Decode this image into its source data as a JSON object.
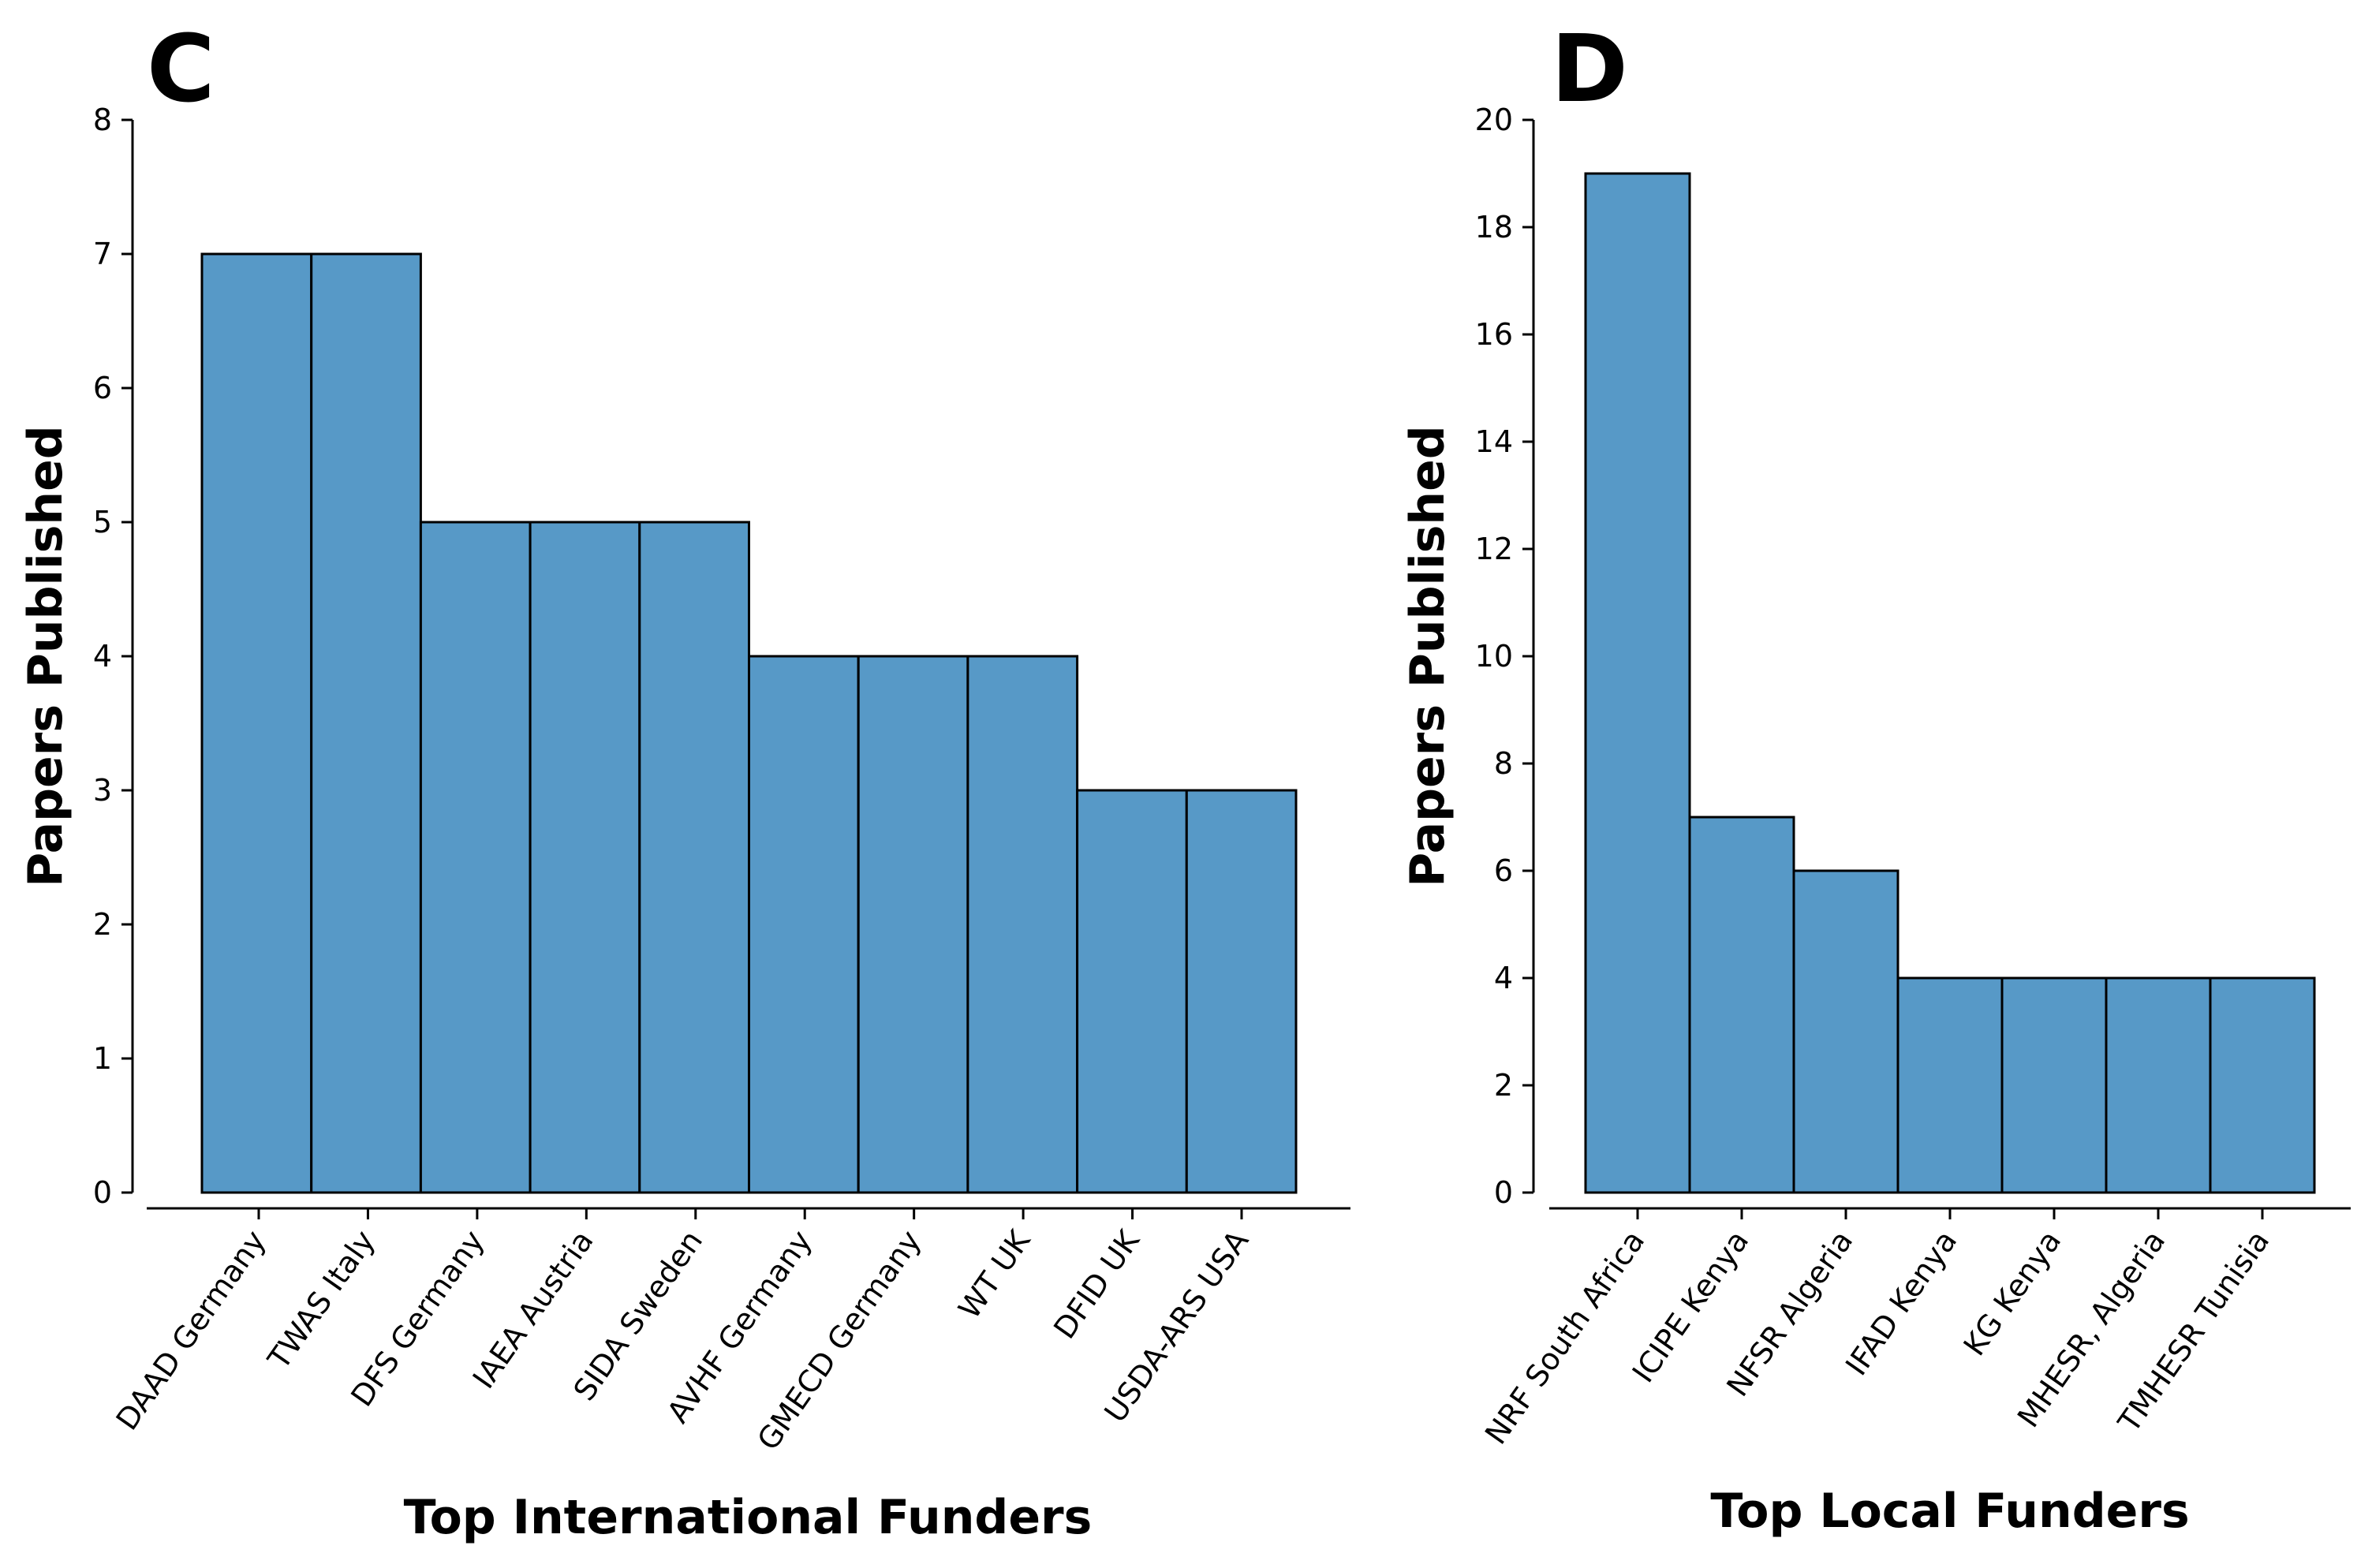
{
  "chart_data": [
    {
      "type": "bar",
      "panel_label": "C",
      "xlabel": "Top International Funders",
      "ylabel": "Papers Published",
      "categories": [
        "DAAD Germany",
        "TWAS Italy",
        "DFS Germany",
        "IAEA Austria",
        "SIDA Sweden",
        "AVHF Germany",
        "GMECD Germany",
        "WT UK",
        "DFID UK",
        "USDA-ARS USA"
      ],
      "values": [
        7,
        7,
        5,
        5,
        5,
        4,
        4,
        4,
        3,
        3
      ],
      "ylim": [
        0,
        8
      ],
      "yticks": [
        0,
        1,
        2,
        3,
        4,
        5,
        6,
        7,
        8
      ],
      "grid": false,
      "bar_color": "#5799c7",
      "edge_color": "#000000"
    },
    {
      "type": "bar",
      "panel_label": "D",
      "xlabel": "Top Local Funders",
      "ylabel": "Papers Published",
      "categories": [
        "NRF South Africa",
        "ICIPE Kenya",
        "NFSR Algeria",
        "IFAD Kenya",
        "KG Kenya",
        "MHESR, Algeria",
        "TMHESR Tunisia"
      ],
      "values": [
        19,
        7,
        6,
        4,
        4,
        4,
        4
      ],
      "ylim": [
        0,
        20
      ],
      "yticks": [
        0,
        2,
        4,
        6,
        8,
        10,
        12,
        14,
        16,
        18,
        20
      ],
      "grid": false,
      "bar_color": "#5799c7",
      "edge_color": "#000000"
    }
  ]
}
